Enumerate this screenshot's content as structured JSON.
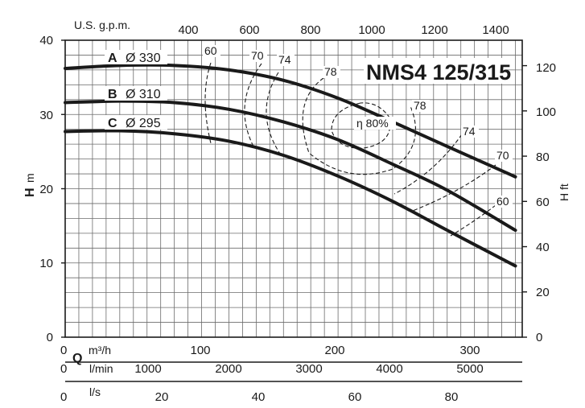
{
  "chart_data": {
    "type": "line",
    "title": "NMS4 125/315",
    "axes": {
      "left": {
        "label_bold": "H",
        "label_unit": "m",
        "ticks": [
          "0",
          "10",
          "20",
          "30",
          "40"
        ],
        "range": [
          0,
          40
        ]
      },
      "right": {
        "label": "H ft",
        "ticks": [
          "0",
          "20",
          "40",
          "60",
          "80",
          "100",
          "120"
        ],
        "range_ft": [
          0,
          131.2
        ]
      },
      "top": {
        "label": "U.S. g.p.m.",
        "ticks": [
          "400",
          "600",
          "800",
          "1000",
          "1200",
          "1400"
        ]
      },
      "bottom_m3h": {
        "label_bold": "Q",
        "label_unit": "m³/h",
        "ticks": [
          "0",
          "100",
          "200",
          "300"
        ],
        "range": [
          0,
          335
        ]
      },
      "bottom_lmin": {
        "label": "l/min",
        "ticks": [
          "0",
          "1000",
          "2000",
          "3000",
          "4000",
          "5000"
        ]
      },
      "bottom_ls": {
        "label": "l/s",
        "ticks": [
          "0",
          "20",
          "40",
          "60",
          "80"
        ]
      }
    },
    "series": [
      {
        "letter": "A",
        "diameter": "Ø 330",
        "q_m3h": [
          0,
          40,
          80,
          120,
          160,
          200,
          240,
          280,
          330
        ],
        "h_m": [
          36.2,
          36.6,
          36.6,
          36.0,
          34.6,
          32.2,
          29.0,
          25.7,
          21.6
        ]
      },
      {
        "letter": "B",
        "diameter": "Ø 310",
        "q_m3h": [
          0,
          40,
          80,
          120,
          160,
          200,
          240,
          280,
          330
        ],
        "h_m": [
          31.6,
          31.8,
          31.6,
          30.7,
          29.0,
          26.6,
          23.3,
          19.8,
          14.4
        ]
      },
      {
        "letter": "C",
        "diameter": "Ø 295",
        "q_m3h": [
          0,
          40,
          80,
          120,
          160,
          200,
          240,
          280,
          330
        ],
        "h_m": [
          27.7,
          27.8,
          27.4,
          26.4,
          24.5,
          21.7,
          18.3,
          14.4,
          9.6
        ]
      }
    ],
    "efficiency_labels": {
      "left": [
        "60",
        "70",
        "74",
        "78"
      ],
      "right": [
        "78",
        "74",
        "70",
        "60"
      ],
      "peak": "η 80%"
    },
    "grid": true
  }
}
